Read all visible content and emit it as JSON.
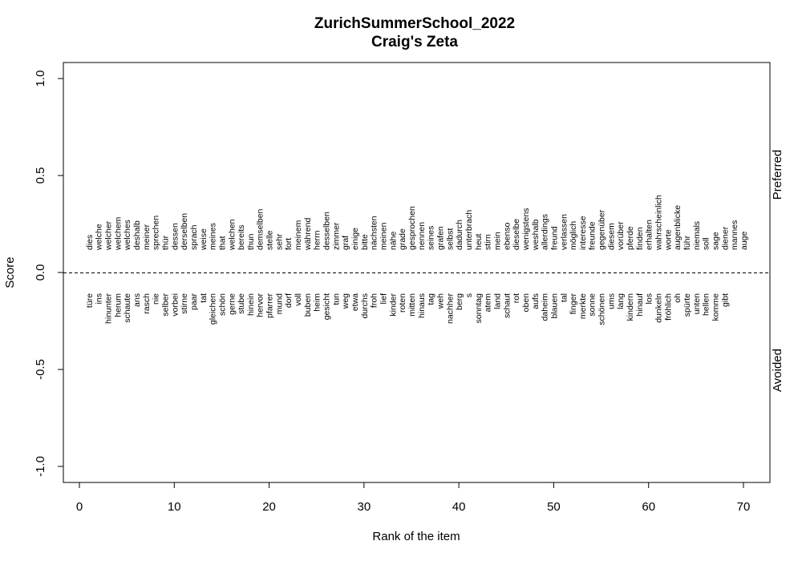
{
  "chart_data": {
    "type": "scatter",
    "title": "ZurichSummerSchool_2022",
    "subtitle": "Craig's Zeta",
    "xlabel": "Rank of the item",
    "ylabel": "Score",
    "xlim": [
      0,
      70
    ],
    "ylim": [
      -1.0,
      1.0
    ],
    "x_ticks": [
      "0",
      "10",
      "20",
      "30",
      "40",
      "50",
      "60",
      "70"
    ],
    "y_ticks": [
      "-1.0",
      "-0.5",
      "0.0",
      "0.5",
      "1.0"
    ],
    "reference_line": 0,
    "grid": false,
    "side_labels": {
      "top": "Preferred",
      "bottom": "Avoided"
    },
    "preferred": [
      "dies",
      "welche",
      "welcher",
      "welchem",
      "welches",
      "deshalb",
      "meiner",
      "sprechen",
      "thür",
      "dessen",
      "derselben",
      "sprach",
      "weise",
      "meines",
      "that",
      "welchen",
      "bereits",
      "thun",
      "demselben",
      "stelle",
      "sehr",
      "fort",
      "meinem",
      "während",
      "herrn",
      "desselben",
      "zimmer",
      "graf",
      "einige",
      "bitte",
      "nächsten",
      "meinen",
      "nähe",
      "grade",
      "gesprochen",
      "nennen",
      "seines",
      "grafen",
      "selbst",
      "dadurch",
      "unterbrach",
      "heut",
      "stirn",
      "mein",
      "ebenso",
      "dieselbe",
      "wenigstens",
      "weshalb",
      "allerdings",
      "freund",
      "verlassen",
      "möglich",
      "interesse",
      "freunde",
      "gegenüber",
      "diesem",
      "vorüber",
      "pferde",
      "finden",
      "erhalten",
      "wahrscheinlich",
      "worte",
      "augenblicke",
      "führ",
      "niemals",
      "soll",
      "sage",
      "diener",
      "mannes",
      "auge"
    ],
    "avoided": [
      "türe",
      "ins",
      "hinunter",
      "herum",
      "schaute",
      "ans",
      "rasch",
      "nie",
      "selber",
      "vorbei",
      "stirne",
      "paar",
      "tat",
      "gleichen",
      "schön",
      "gerne",
      "stube",
      "hinein",
      "hervor",
      "pfarrer",
      "mund",
      "dorf",
      "voll",
      "buben",
      "heim",
      "gesicht",
      "tun",
      "weg",
      "etwa",
      "durchs",
      "froh",
      "lief",
      "kinder",
      "roten",
      "mitten",
      "hinaus",
      "tag",
      "weh",
      "nachher",
      "berg",
      "s",
      "sonntag",
      "atem",
      "land",
      "schaut",
      "rot",
      "oben",
      "aufs",
      "daheim",
      "blauen",
      "tal",
      "finger",
      "merkte",
      "sonne",
      "schönen",
      "ums",
      "lang",
      "kindern",
      "hinauf",
      "los",
      "dunkeln",
      "fröhlich",
      "oh",
      "spürte",
      "unten",
      "hellen",
      "komme",
      "gibt"
    ]
  }
}
